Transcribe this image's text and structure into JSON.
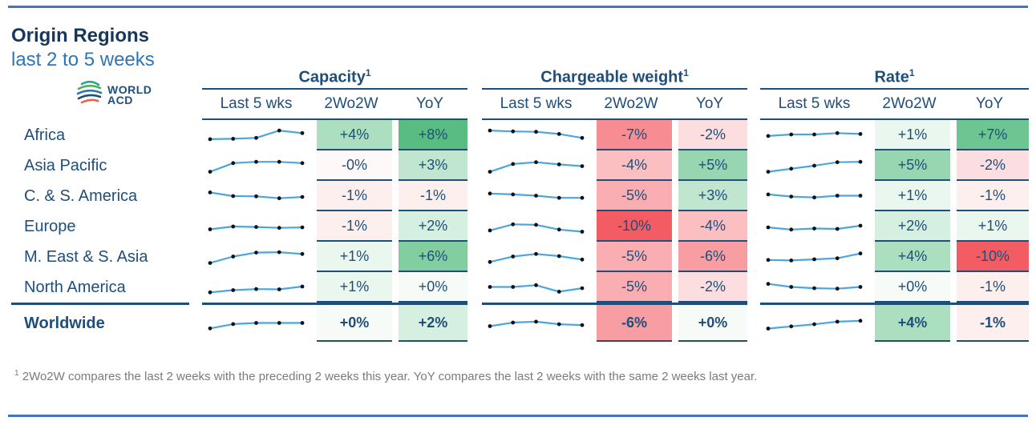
{
  "header": {
    "title": "Origin Regions",
    "subtitle": "last 2 to 5 weeks",
    "logo_line1": "WORLD",
    "logo_line2": "ACD"
  },
  "footnote": {
    "sup": "1",
    "text": " 2Wo2W compares the last 2 weeks with the preceding 2 weeks this year. YoY compares the last 2 weeks with the same 2 weeks last year."
  },
  "colors": {
    "navy": "#1F4E79",
    "title_navy": "#17375D",
    "subtitle_blue": "#2E75B6",
    "rule_blue": "#4472C4",
    "green_base": "#2FAD62",
    "red_base": "#F45C63",
    "spark_line": "#4BA6DC",
    "spark_dot": "#111111",
    "footnote_gray": "#7B7B7B"
  },
  "chart_data": {
    "type": "table",
    "title": "Origin Regions",
    "subtitle": "last 2 to 5 weeks",
    "groups": [
      {
        "title": "Capacity",
        "sup": "1"
      },
      {
        "title": "Chargeable weight",
        "sup": "1"
      },
      {
        "title": "Rate",
        "sup": "1"
      }
    ],
    "sub_columns": [
      "Last 5 wks",
      "2Wo2W",
      "YoY"
    ],
    "sparkline_note": "values are relative 0-10 visual scale per row, 5 weekly points each",
    "rows": [
      {
        "region": "Africa",
        "bold": false,
        "capacity": {
          "spark": [
            3,
            3.2,
            3.6,
            7,
            5.8
          ],
          "wow": "+4%",
          "yoy": "+8%"
        },
        "chargeable": {
          "spark": [
            7,
            6.6,
            6.4,
            5.4,
            3.6
          ],
          "wow": "-7%",
          "yoy": "-2%"
        },
        "rate": {
          "spark": [
            4.5,
            5.2,
            5.2,
            5.8,
            5.4
          ],
          "wow": "+1%",
          "yoy": "+7%"
        }
      },
      {
        "region": "Asia Pacific",
        "bold": false,
        "capacity": {
          "spark": [
            2,
            6,
            6.6,
            6.6,
            6
          ],
          "wow": "-0%",
          "yoy": "+3%"
        },
        "chargeable": {
          "spark": [
            2,
            5.6,
            6.4,
            5.4,
            4.6
          ],
          "wow": "-4%",
          "yoy": "+5%"
        },
        "rate": {
          "spark": [
            2,
            3.4,
            4.8,
            6.4,
            6.6
          ],
          "wow": "+5%",
          "yoy": "-2%"
        }
      },
      {
        "region": "C. & S. America",
        "bold": false,
        "capacity": {
          "spark": [
            6.5,
            4.8,
            4.7,
            3.8,
            4.4
          ],
          "wow": "-1%",
          "yoy": "-1%"
        },
        "chargeable": {
          "spark": [
            6,
            5.6,
            5,
            4,
            4
          ],
          "wow": "-5%",
          "yoy": "+3%"
        },
        "rate": {
          "spark": [
            5.6,
            4.6,
            4.2,
            5,
            5
          ],
          "wow": "+1%",
          "yoy": "-1%"
        }
      },
      {
        "region": "Europe",
        "bold": false,
        "capacity": {
          "spark": [
            3.5,
            4.8,
            4.6,
            4.2,
            4.4
          ],
          "wow": "-1%",
          "yoy": "+2%"
        },
        "chargeable": {
          "spark": [
            3,
            5.8,
            5.6,
            3.4,
            2.4
          ],
          "wow": "-10%",
          "yoy": "-4%"
        },
        "rate": {
          "spark": [
            4.4,
            3.4,
            3.9,
            3.7,
            5.2
          ],
          "wow": "+2%",
          "yoy": "+1%"
        }
      },
      {
        "region": "M. East & S. Asia",
        "bold": false,
        "capacity": {
          "spark": [
            2,
            5,
            6.8,
            7,
            6.2
          ],
          "wow": "+1%",
          "yoy": "+6%"
        },
        "chargeable": {
          "spark": [
            2.5,
            5,
            6.2,
            5.2,
            3.6
          ],
          "wow": "-5%",
          "yoy": "-6%"
        },
        "rate": {
          "spark": [
            3.4,
            3.2,
            3.7,
            4.2,
            6.4
          ],
          "wow": "+4%",
          "yoy": "-10%"
        }
      },
      {
        "region": "North America",
        "bold": false,
        "capacity": {
          "spark": [
            2.5,
            3.5,
            4,
            3.9,
            5.2
          ],
          "wow": "+1%",
          "yoy": "+0%"
        },
        "chargeable": {
          "spark": [
            5,
            5,
            5.8,
            2.8,
            4.4
          ],
          "wow": "-5%",
          "yoy": "-2%"
        },
        "rate": {
          "spark": [
            6.4,
            5,
            4.4,
            4.2,
            5
          ],
          "wow": "+0%",
          "yoy": "-1%"
        }
      },
      {
        "region": "Worldwide",
        "bold": true,
        "capacity": {
          "spark": [
            2.5,
            4.5,
            5,
            5,
            5
          ],
          "wow": "+0%",
          "yoy": "+2%"
        },
        "chargeable": {
          "spark": [
            3.5,
            5.2,
            5.6,
            4.4,
            4
          ],
          "wow": "-6%",
          "yoy": "+0%"
        },
        "rate": {
          "spark": [
            2.4,
            3.4,
            4.4,
            5.6,
            6
          ],
          "wow": "+4%",
          "yoy": "-1%"
        }
      }
    ]
  }
}
